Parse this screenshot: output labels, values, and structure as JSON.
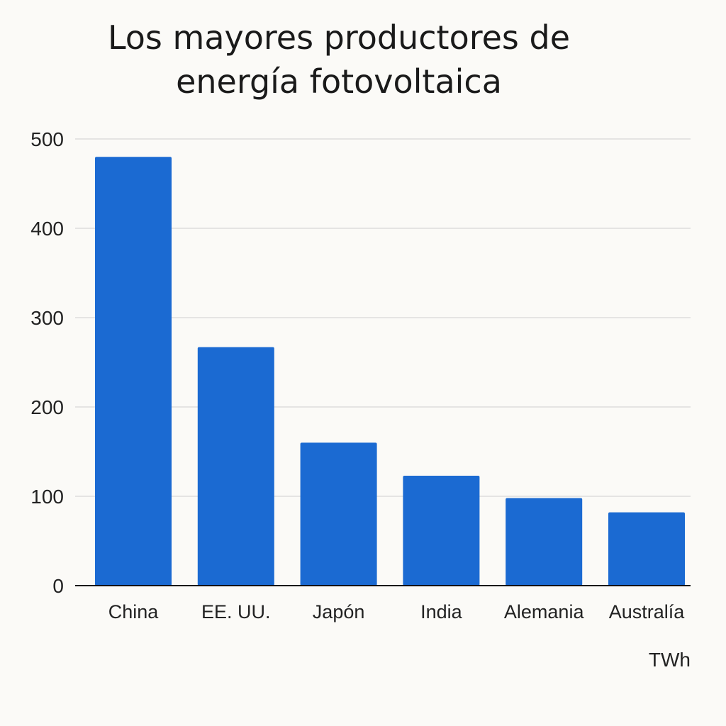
{
  "chart_data": {
    "type": "bar",
    "title_lines": [
      "Los mayores productores de",
      "energía fotovoltaica"
    ],
    "categories": [
      "China",
      "EE. UU.",
      "Japón",
      "India",
      "Alemania",
      "Australía"
    ],
    "values": [
      480,
      267,
      160,
      123,
      98,
      82
    ],
    "ylim": [
      0,
      500
    ],
    "yticks": [
      "0",
      "100",
      "200",
      "300",
      "400",
      "500"
    ],
    "unit": "TWh",
    "grid": true,
    "bar_color": "#1b6ad2",
    "grid_color": "#cfcfcf",
    "axis_color": "#111111"
  }
}
